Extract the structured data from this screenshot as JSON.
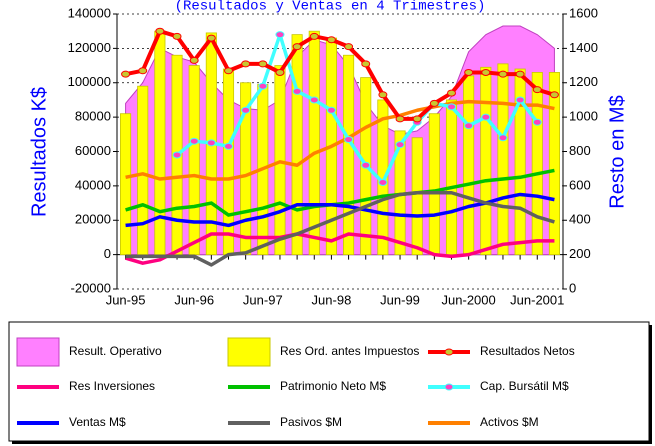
{
  "chart_data": {
    "type": "combo",
    "title": "(Resultados y Ventas en 4 Trimestres)",
    "y_label": "Resultados K$",
    "y2_label": "Resto en M$",
    "categories": [
      "Jun-95",
      null,
      null,
      null,
      "Jun-96",
      null,
      null,
      null,
      "Jun-97",
      null,
      null,
      null,
      "Jun-98",
      null,
      null,
      null,
      "Jun-99",
      null,
      null,
      null,
      "Jun-2000",
      null,
      null,
      null,
      "Jun-2001",
      null
    ],
    "ylim": [
      -20000,
      140000
    ],
    "yticks": [
      -20000,
      0,
      20000,
      40000,
      60000,
      80000,
      100000,
      120000,
      140000
    ],
    "y2lim": [
      0,
      1600
    ],
    "y2ticks": [
      0,
      200,
      400,
      600,
      800,
      1000,
      1200,
      1400,
      1600
    ],
    "grid": true,
    "legend_position": "bottom",
    "series": [
      {
        "name": "Result. Operativo",
        "kind": "area",
        "color": "#ff80ff",
        "edge": "#c040c0",
        "values": [
          88000,
          100000,
          120000,
          115000,
          112000,
          100000,
          90000,
          85000,
          84000,
          90000,
          115000,
          125000,
          122000,
          110000,
          88000,
          75000,
          70000,
          72000,
          80000,
          92000,
          118000,
          128000,
          133000,
          133000,
          128000,
          120000
        ]
      },
      {
        "name": "Res Ord. antes Impuestos",
        "kind": "bar",
        "color": "#ffff00",
        "edge": "#c8c800",
        "values": [
          82000,
          98000,
          130000,
          116000,
          110000,
          129000,
          108000,
          100000,
          99000,
          110000,
          128000,
          130000,
          126000,
          116000,
          103000,
          90000,
          72000,
          68000,
          82000,
          90000,
          104000,
          109000,
          111000,
          108000,
          106000,
          106000
        ]
      },
      {
        "name": "Resultados Netos",
        "kind": "line",
        "axis": "y2",
        "color": "#ff0000",
        "marker_color": "#c8c832",
        "values": [
          1250,
          1270,
          1500,
          1470,
          1330,
          1460,
          1270,
          1310,
          1310,
          1260,
          1410,
          1470,
          1450,
          1410,
          1310,
          1130,
          990,
          990,
          1080,
          1140,
          1260,
          1260,
          1250,
          1250,
          1160,
          1130
        ]
      },
      {
        "name": "Res Inversiones",
        "kind": "line",
        "color": "#ff0080",
        "values": [
          -2000,
          -5000,
          -3000,
          2000,
          7000,
          12000,
          12000,
          10000,
          10000,
          10000,
          12000,
          10000,
          8000,
          12000,
          11000,
          10000,
          7000,
          4000,
          0,
          -1000,
          0,
          3000,
          6000,
          7000,
          8000,
          8000
        ]
      },
      {
        "name": "Patrimonio Neto M$",
        "kind": "line",
        "axis": "y2",
        "color": "#00c000",
        "values": [
          460,
          490,
          450,
          470,
          480,
          500,
          430,
          450,
          470,
          500,
          460,
          480,
          490,
          500,
          520,
          540,
          550,
          560,
          570,
          590,
          610,
          630,
          640,
          650,
          670,
          690
        ]
      },
      {
        "name": "Cap. Bursátil M$",
        "kind": "line",
        "axis": "y2",
        "color": "#40ffff",
        "marker_color": "#ff40c0",
        "values": [
          null,
          null,
          null,
          780,
          860,
          850,
          830,
          1040,
          1180,
          1480,
          1150,
          1100,
          1040,
          870,
          720,
          620,
          840,
          970,
          1080,
          1060,
          950,
          1000,
          880,
          1100,
          970,
          null
        ]
      },
      {
        "name": "Ventas M$",
        "kind": "line",
        "axis": "y2",
        "color": "#0000ff",
        "values": [
          370,
          380,
          420,
          400,
          390,
          390,
          370,
          400,
          420,
          450,
          490,
          490,
          490,
          480,
          460,
          440,
          430,
          425,
          430,
          450,
          480,
          500,
          530,
          550,
          540,
          520
        ]
      },
      {
        "name": "Pasivos $M",
        "kind": "line",
        "axis": "y2",
        "color": "#606060",
        "values": [
          190,
          190,
          190,
          190,
          190,
          140,
          200,
          210,
          250,
          290,
          320,
          360,
          400,
          440,
          480,
          520,
          550,
          560,
          560,
          560,
          530,
          500,
          480,
          470,
          420,
          390
        ]
      },
      {
        "name": "Activos $M",
        "kind": "line",
        "axis": "y2",
        "color": "#ff8000",
        "values": [
          650,
          670,
          640,
          650,
          660,
          640,
          640,
          660,
          700,
          740,
          720,
          790,
          830,
          880,
          940,
          990,
          1010,
          1040,
          1060,
          1080,
          1090,
          1085,
          1080,
          1070,
          1070,
          1050
        ]
      }
    ]
  }
}
